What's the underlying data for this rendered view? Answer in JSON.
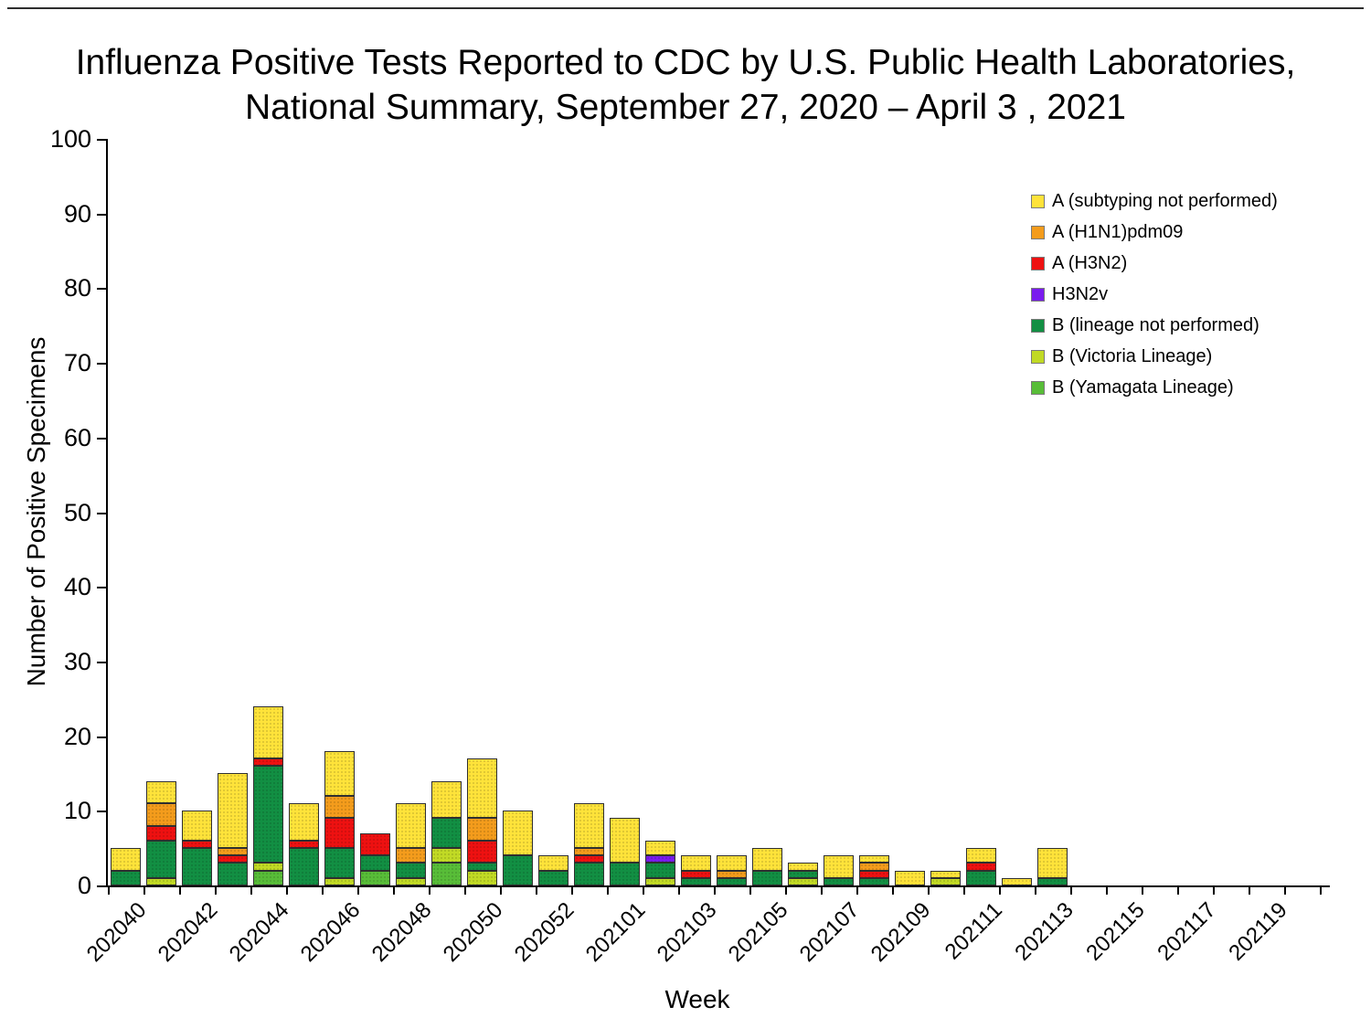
{
  "title": {
    "line1": "Influenza Positive Tests Reported to CDC by U.S. Public Health Laboratories,",
    "line2": "National Summary, September 27, 2020 – April 3 , 2021"
  },
  "chart_data": {
    "type": "bar",
    "stacked": true,
    "title": "Influenza Positive Tests Reported to CDC by U.S. Public Health Laboratories, National Summary, September 27, 2020 – April 3 , 2021",
    "xlabel": "Week",
    "ylabel": "Number of Positive Specimens",
    "ylim": [
      0,
      100
    ],
    "ytick_step": 10,
    "grid": false,
    "legend_position": "upper right",
    "x_tick_labels_shown": [
      "202040",
      "202042",
      "202044",
      "202046",
      "202048",
      "202050",
      "202052",
      "202101",
      "202103",
      "202105",
      "202107",
      "202109",
      "202111",
      "202113",
      "202115",
      "202117",
      "202119"
    ],
    "categories": [
      "202040",
      "202041",
      "202042",
      "202043",
      "202044",
      "202045",
      "202046",
      "202047",
      "202048",
      "202049",
      "202050",
      "202051",
      "202052",
      "202053",
      "202101",
      "202102",
      "202103",
      "202104",
      "202105",
      "202106",
      "202107",
      "202108",
      "202109",
      "202110",
      "202111",
      "202112",
      "202113",
      "202114",
      "202115",
      "202116",
      "202117",
      "202118",
      "202119",
      "202120"
    ],
    "stack_order_note": "series listed in legend order (top of legend = top of stack); stacked bottom-to-top in reverse of this list",
    "series": [
      {
        "name": "A (subtyping not performed)",
        "color": "#FFE33A",
        "values": [
          3,
          3,
          4,
          10,
          7,
          5,
          6,
          0,
          6,
          5,
          8,
          6,
          2,
          6,
          6,
          2,
          2,
          2,
          3,
          1,
          3,
          1,
          2,
          1,
          2,
          1,
          4,
          0,
          0,
          0,
          0,
          0,
          0,
          0
        ]
      },
      {
        "name": "A (H1N1)pdm09",
        "color": "#F49C1C",
        "values": [
          0,
          3,
          0,
          1,
          0,
          0,
          3,
          0,
          2,
          0,
          3,
          0,
          0,
          1,
          0,
          0,
          0,
          1,
          0,
          0,
          0,
          1,
          0,
          0,
          0,
          0,
          0,
          0,
          0,
          0,
          0,
          0,
          0,
          0
        ]
      },
      {
        "name": "A (H3N2)",
        "color": "#EE1111",
        "values": [
          0,
          2,
          1,
          1,
          1,
          1,
          4,
          3,
          0,
          0,
          3,
          0,
          0,
          1,
          0,
          0,
          1,
          0,
          0,
          0,
          0,
          1,
          0,
          0,
          1,
          0,
          0,
          0,
          0,
          0,
          0,
          0,
          0,
          0
        ]
      },
      {
        "name": "H3N2v",
        "color": "#7A1BEE",
        "values": [
          0,
          0,
          0,
          0,
          0,
          0,
          0,
          0,
          0,
          0,
          0,
          0,
          0,
          0,
          0,
          1,
          0,
          0,
          0,
          0,
          0,
          0,
          0,
          0,
          0,
          0,
          0,
          0,
          0,
          0,
          0,
          0,
          0,
          0
        ]
      },
      {
        "name": "B (lineage not performed)",
        "color": "#128F43",
        "values": [
          2,
          5,
          5,
          3,
          13,
          5,
          4,
          2,
          2,
          4,
          1,
          4,
          2,
          3,
          3,
          2,
          1,
          1,
          2,
          1,
          1,
          1,
          0,
          0,
          2,
          0,
          1,
          0,
          0,
          0,
          0,
          0,
          0,
          0
        ]
      },
      {
        "name": "B (Victoria Lineage)",
        "color": "#C1DA25",
        "values": [
          0,
          1,
          0,
          0,
          1,
          0,
          1,
          0,
          1,
          2,
          2,
          0,
          0,
          0,
          0,
          1,
          0,
          0,
          0,
          1,
          0,
          0,
          0,
          1,
          0,
          0,
          0,
          0,
          0,
          0,
          0,
          0,
          0,
          0
        ]
      },
      {
        "name": "B (Yamagata Lineage)",
        "color": "#58BD38",
        "values": [
          0,
          0,
          0,
          0,
          2,
          0,
          0,
          2,
          0,
          3,
          0,
          0,
          0,
          0,
          0,
          0,
          0,
          0,
          0,
          0,
          0,
          0,
          0,
          0,
          0,
          0,
          0,
          0,
          0,
          0,
          0,
          0,
          0,
          0
        ]
      }
    ]
  }
}
